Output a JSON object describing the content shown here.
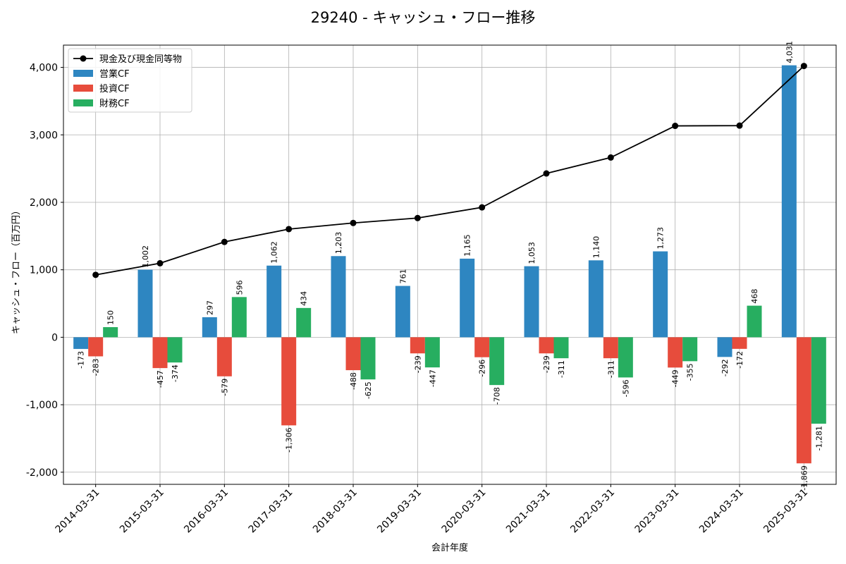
{
  "chart_data": {
    "type": "bar",
    "title": "29240 - キャッシュ・フロー推移",
    "xlabel": "会計年度",
    "ylabel": "キャッシュ・フロー（百万円）",
    "ylim": [
      -2180,
      4330
    ],
    "yticks": [
      -2000,
      -1000,
      0,
      1000,
      2000,
      3000,
      4000
    ],
    "ytick_labels": [
      "-2,000",
      "-1,000",
      "0",
      "1,000",
      "2,000",
      "3,000",
      "4,000"
    ],
    "grid": true,
    "legend_position": "top-left",
    "categories": [
      "2014-03-31",
      "2015-03-31",
      "2016-03-31",
      "2017-03-31",
      "2018-03-31",
      "2019-03-31",
      "2020-03-31",
      "2021-03-31",
      "2022-03-31",
      "2023-03-31",
      "2024-03-31",
      "2025-03-31"
    ],
    "series": [
      {
        "name": "営業CF",
        "kind": "bar",
        "color": "#2e86c1",
        "values": [
          -173,
          1002,
          297,
          1062,
          1203,
          761,
          1165,
          1053,
          1140,
          1273,
          -292,
          4031
        ],
        "labels": [
          "-173",
          "1,002",
          "297",
          "1,062",
          "1,203",
          "761",
          "1,165",
          "1,053",
          "1,140",
          "1,273",
          "-292",
          "4,031"
        ]
      },
      {
        "name": "投資CF",
        "kind": "bar",
        "color": "#e74c3c",
        "values": [
          -283,
          -457,
          -579,
          -1306,
          -488,
          -239,
          -296,
          -239,
          -311,
          -449,
          -172,
          -1869
        ],
        "labels": [
          "-283",
          "-457",
          "-579",
          "-1,306",
          "-488",
          "-239",
          "-296",
          "-239",
          "-311",
          "-449",
          "-172",
          "-1,869"
        ]
      },
      {
        "name": "財務CF",
        "kind": "bar",
        "color": "#27ae60",
        "values": [
          150,
          -374,
          596,
          434,
          -625,
          -447,
          -708,
          -311,
          -596,
          -355,
          468,
          -1281
        ],
        "labels": [
          "150",
          "-374",
          "596",
          "434",
          "-625",
          "-447",
          "-708",
          "-311",
          "-596",
          "-355",
          "468",
          "-1,281"
        ]
      },
      {
        "name": "現金及び現金同等物",
        "kind": "line",
        "color": "#000000",
        "values": [
          925,
          1097,
          1413,
          1603,
          1694,
          1767,
          1925,
          2428,
          2664,
          3133,
          3137,
          4021
        ]
      }
    ]
  }
}
